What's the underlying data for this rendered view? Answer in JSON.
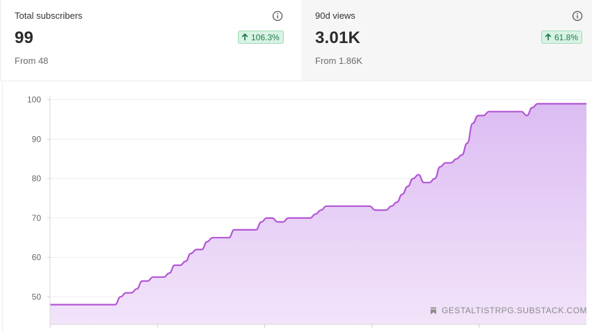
{
  "stats": {
    "subscribers": {
      "label": "Total subscribers",
      "value": "99",
      "change": "106.3%",
      "from": "From 48"
    },
    "views": {
      "label": "90d views",
      "value": "3.01K",
      "change": "61.8%",
      "from": "From 1.86K"
    }
  },
  "watermark": "GESTALTISTRPG.SUBSTACK.COM",
  "colors": {
    "line": "#b355d6",
    "fill_top": "#dcbcf2",
    "fill_bottom": "#f2e4fa",
    "badge_bg": "#d9f3e4",
    "badge_text": "#1e7a48"
  },
  "chart_data": {
    "type": "area",
    "ylim": [
      43,
      101
    ],
    "yticks": [
      50,
      60,
      70,
      80,
      90,
      100
    ],
    "grid": true,
    "x": [
      0,
      6,
      12,
      13,
      14,
      15,
      16,
      17,
      18,
      19,
      20,
      21,
      22,
      23,
      24,
      25,
      26,
      27,
      28,
      29,
      30,
      31,
      32,
      33,
      34,
      35,
      36,
      37,
      38,
      39,
      40,
      41,
      42,
      43,
      44,
      45,
      46,
      47,
      48,
      49,
      50,
      51,
      52,
      53,
      54,
      55,
      56,
      57,
      58,
      59,
      60,
      61,
      62,
      63,
      64,
      65,
      66,
      67,
      68,
      69,
      70,
      71,
      72,
      73,
      74,
      75,
      76,
      77,
      78,
      79,
      80,
      81,
      82,
      83,
      84,
      85,
      86,
      87,
      88,
      89,
      90,
      91,
      92,
      93,
      94,
      95,
      96,
      97,
      98,
      99
    ],
    "values": [
      48,
      48,
      48,
      50,
      51,
      51,
      52,
      54,
      54,
      55,
      55,
      55,
      56,
      58,
      58,
      59,
      61,
      62,
      62,
      64,
      65,
      65,
      65,
      65,
      67,
      67,
      67,
      67,
      67,
      69,
      70,
      70,
      69,
      69,
      70,
      70,
      70,
      70,
      70,
      71,
      72,
      73,
      73,
      73,
      73,
      73,
      73,
      73,
      73,
      73,
      72,
      72,
      72,
      73,
      74,
      76,
      78,
      80,
      81,
      79,
      79,
      80,
      83,
      84,
      84,
      85,
      86,
      89,
      94,
      96,
      96,
      97,
      97,
      97,
      97,
      97,
      97,
      97,
      96,
      98,
      99,
      99,
      99,
      99,
      99,
      99,
      99,
      99,
      99,
      99
    ]
  }
}
